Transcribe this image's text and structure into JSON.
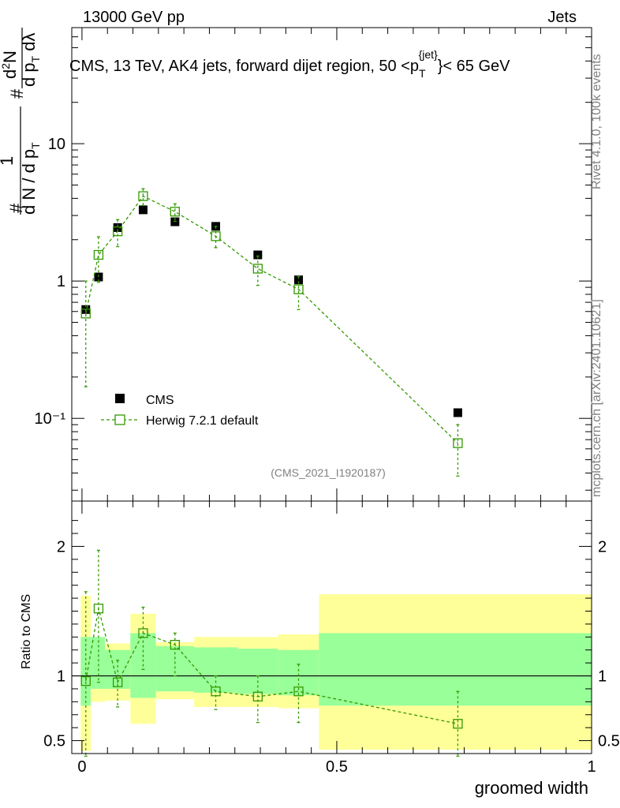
{
  "header": {
    "left": "13000 GeV pp",
    "right": "Jets",
    "side_rivet": "Rivet 4.1.0,  100k events",
    "side_mcplots": "mcplots.cern.ch [arXiv:2401.10621]",
    "watermark": "(CMS_2021_I1920187)"
  },
  "title": {
    "prefix": "CMS, 13 TeV, AK4 jets, forward dijet region, 50 <p",
    "sub": "T",
    "sup": "{jet}",
    "suffix": "}< 65 GeV"
  },
  "ylabel": {
    "hash1": "#",
    "one": "1",
    "den": "d N / d p",
    "den_sub": "T",
    "hash2": "#",
    "num2": "d",
    "num2_sup": "2",
    "num2_tail": "N",
    "den2": "d p",
    "den2_sub": "T",
    "den2_tail": " dλ"
  },
  "chart_data": [
    {
      "type": "scatter",
      "panel": "main",
      "yscale": "log",
      "xlim": [
        -0.02,
        1.0
      ],
      "ylim": [
        0.025,
        70
      ],
      "ytick_labels": [
        "10",
        "1",
        "10⁻¹"
      ],
      "ytick_values": [
        10,
        1,
        0.1
      ],
      "series": [
        {
          "name": "CMS",
          "marker": "filled-square",
          "color": "#000000",
          "x": [
            0.0075,
            0.0325,
            0.07,
            0.12,
            0.1825,
            0.2625,
            0.345,
            0.425,
            0.7375
          ],
          "y": [
            0.62,
            1.07,
            2.45,
            3.3,
            2.7,
            2.5,
            1.55,
            1.02,
            0.11
          ],
          "yerr": [
            0.02,
            0.02,
            0.05,
            0.05,
            0.05,
            0.05,
            0.04,
            0.03,
            0.004
          ]
        },
        {
          "name": "Herwig 7.2.1 default",
          "marker": "open-square-dashed",
          "color": "#339900",
          "x": [
            0.0075,
            0.0325,
            0.07,
            0.12,
            0.1825,
            0.2625,
            0.345,
            0.425,
            0.7375
          ],
          "y": [
            0.58,
            1.55,
            2.3,
            4.15,
            3.2,
            2.12,
            1.23,
            0.87,
            0.066
          ],
          "ylo": [
            0.17,
            0.98,
            1.78,
            3.55,
            2.72,
            1.75,
            0.93,
            0.62,
            0.038
          ],
          "yhi": [
            1.0,
            2.1,
            2.8,
            4.7,
            3.65,
            2.5,
            1.52,
            1.08,
            0.09
          ]
        }
      ]
    },
    {
      "type": "scatter",
      "panel": "ratio",
      "ylabel": "Ratio to CMS",
      "xlabel": "groomed width",
      "xlim": [
        -0.02,
        1.0
      ],
      "ylim": [
        0.4,
        2.35
      ],
      "xtick_labels": [
        "0",
        "0.5",
        "1"
      ],
      "xtick_values": [
        0,
        0.5,
        1
      ],
      "ytick_labels": [
        "0.5",
        "1",
        "2"
      ],
      "ytick_values": [
        0.5,
        1,
        2
      ],
      "bands": [
        {
          "x0": -0.0025,
          "x1": 0.0175,
          "inner": [
            0.77,
            1.3
          ],
          "outer": [
            0.42,
            1.62
          ]
        },
        {
          "x0": 0.0175,
          "x1": 0.045,
          "inner": [
            0.9,
            1.3
          ],
          "outer": [
            0.8,
            1.22
          ]
        },
        {
          "x0": 0.045,
          "x1": 0.095,
          "inner": [
            0.9,
            1.2
          ],
          "outer": [
            0.81,
            1.25
          ]
        },
        {
          "x0": 0.095,
          "x1": 0.145,
          "inner": [
            0.83,
            1.33
          ],
          "outer": [
            0.63,
            1.48
          ]
        },
        {
          "x0": 0.145,
          "x1": 0.22,
          "inner": [
            0.88,
            1.23
          ],
          "outer": [
            0.82,
            1.26
          ]
        },
        {
          "x0": 0.22,
          "x1": 0.305,
          "inner": [
            0.87,
            1.22
          ],
          "outer": [
            0.76,
            1.3
          ]
        },
        {
          "x0": 0.305,
          "x1": 0.385,
          "inner": [
            0.86,
            1.21
          ],
          "outer": [
            0.76,
            1.3
          ]
        },
        {
          "x0": 0.385,
          "x1": 0.465,
          "inner": [
            0.85,
            1.2
          ],
          "outer": [
            0.75,
            1.32
          ]
        },
        {
          "x0": 0.465,
          "x1": 1.0,
          "inner": [
            0.77,
            1.33
          ],
          "outer": [
            0.43,
            1.63
          ]
        }
      ],
      "series": [
        {
          "name": "Herwig 7.2.1 default",
          "color": "#339900",
          "x": [
            0.0075,
            0.0325,
            0.07,
            0.12,
            0.1825,
            0.2625,
            0.345,
            0.425,
            0.7375
          ],
          "y": [
            0.96,
            1.52,
            0.95,
            1.33,
            1.24,
            0.88,
            0.84,
            0.88,
            0.63
          ],
          "ylo": [
            0.38,
            0.95,
            0.76,
            1.05,
            1.0,
            0.74,
            0.64,
            0.64,
            0.38
          ],
          "yhi": [
            1.65,
            1.97,
            1.12,
            1.53,
            1.33,
            1.0,
            1.0,
            1.09,
            0.88
          ]
        }
      ]
    }
  ],
  "colors": {
    "cms": "#000000",
    "herwig": "#339900",
    "band_inner": "#99ff99",
    "band_outer": "#ffff99"
  }
}
